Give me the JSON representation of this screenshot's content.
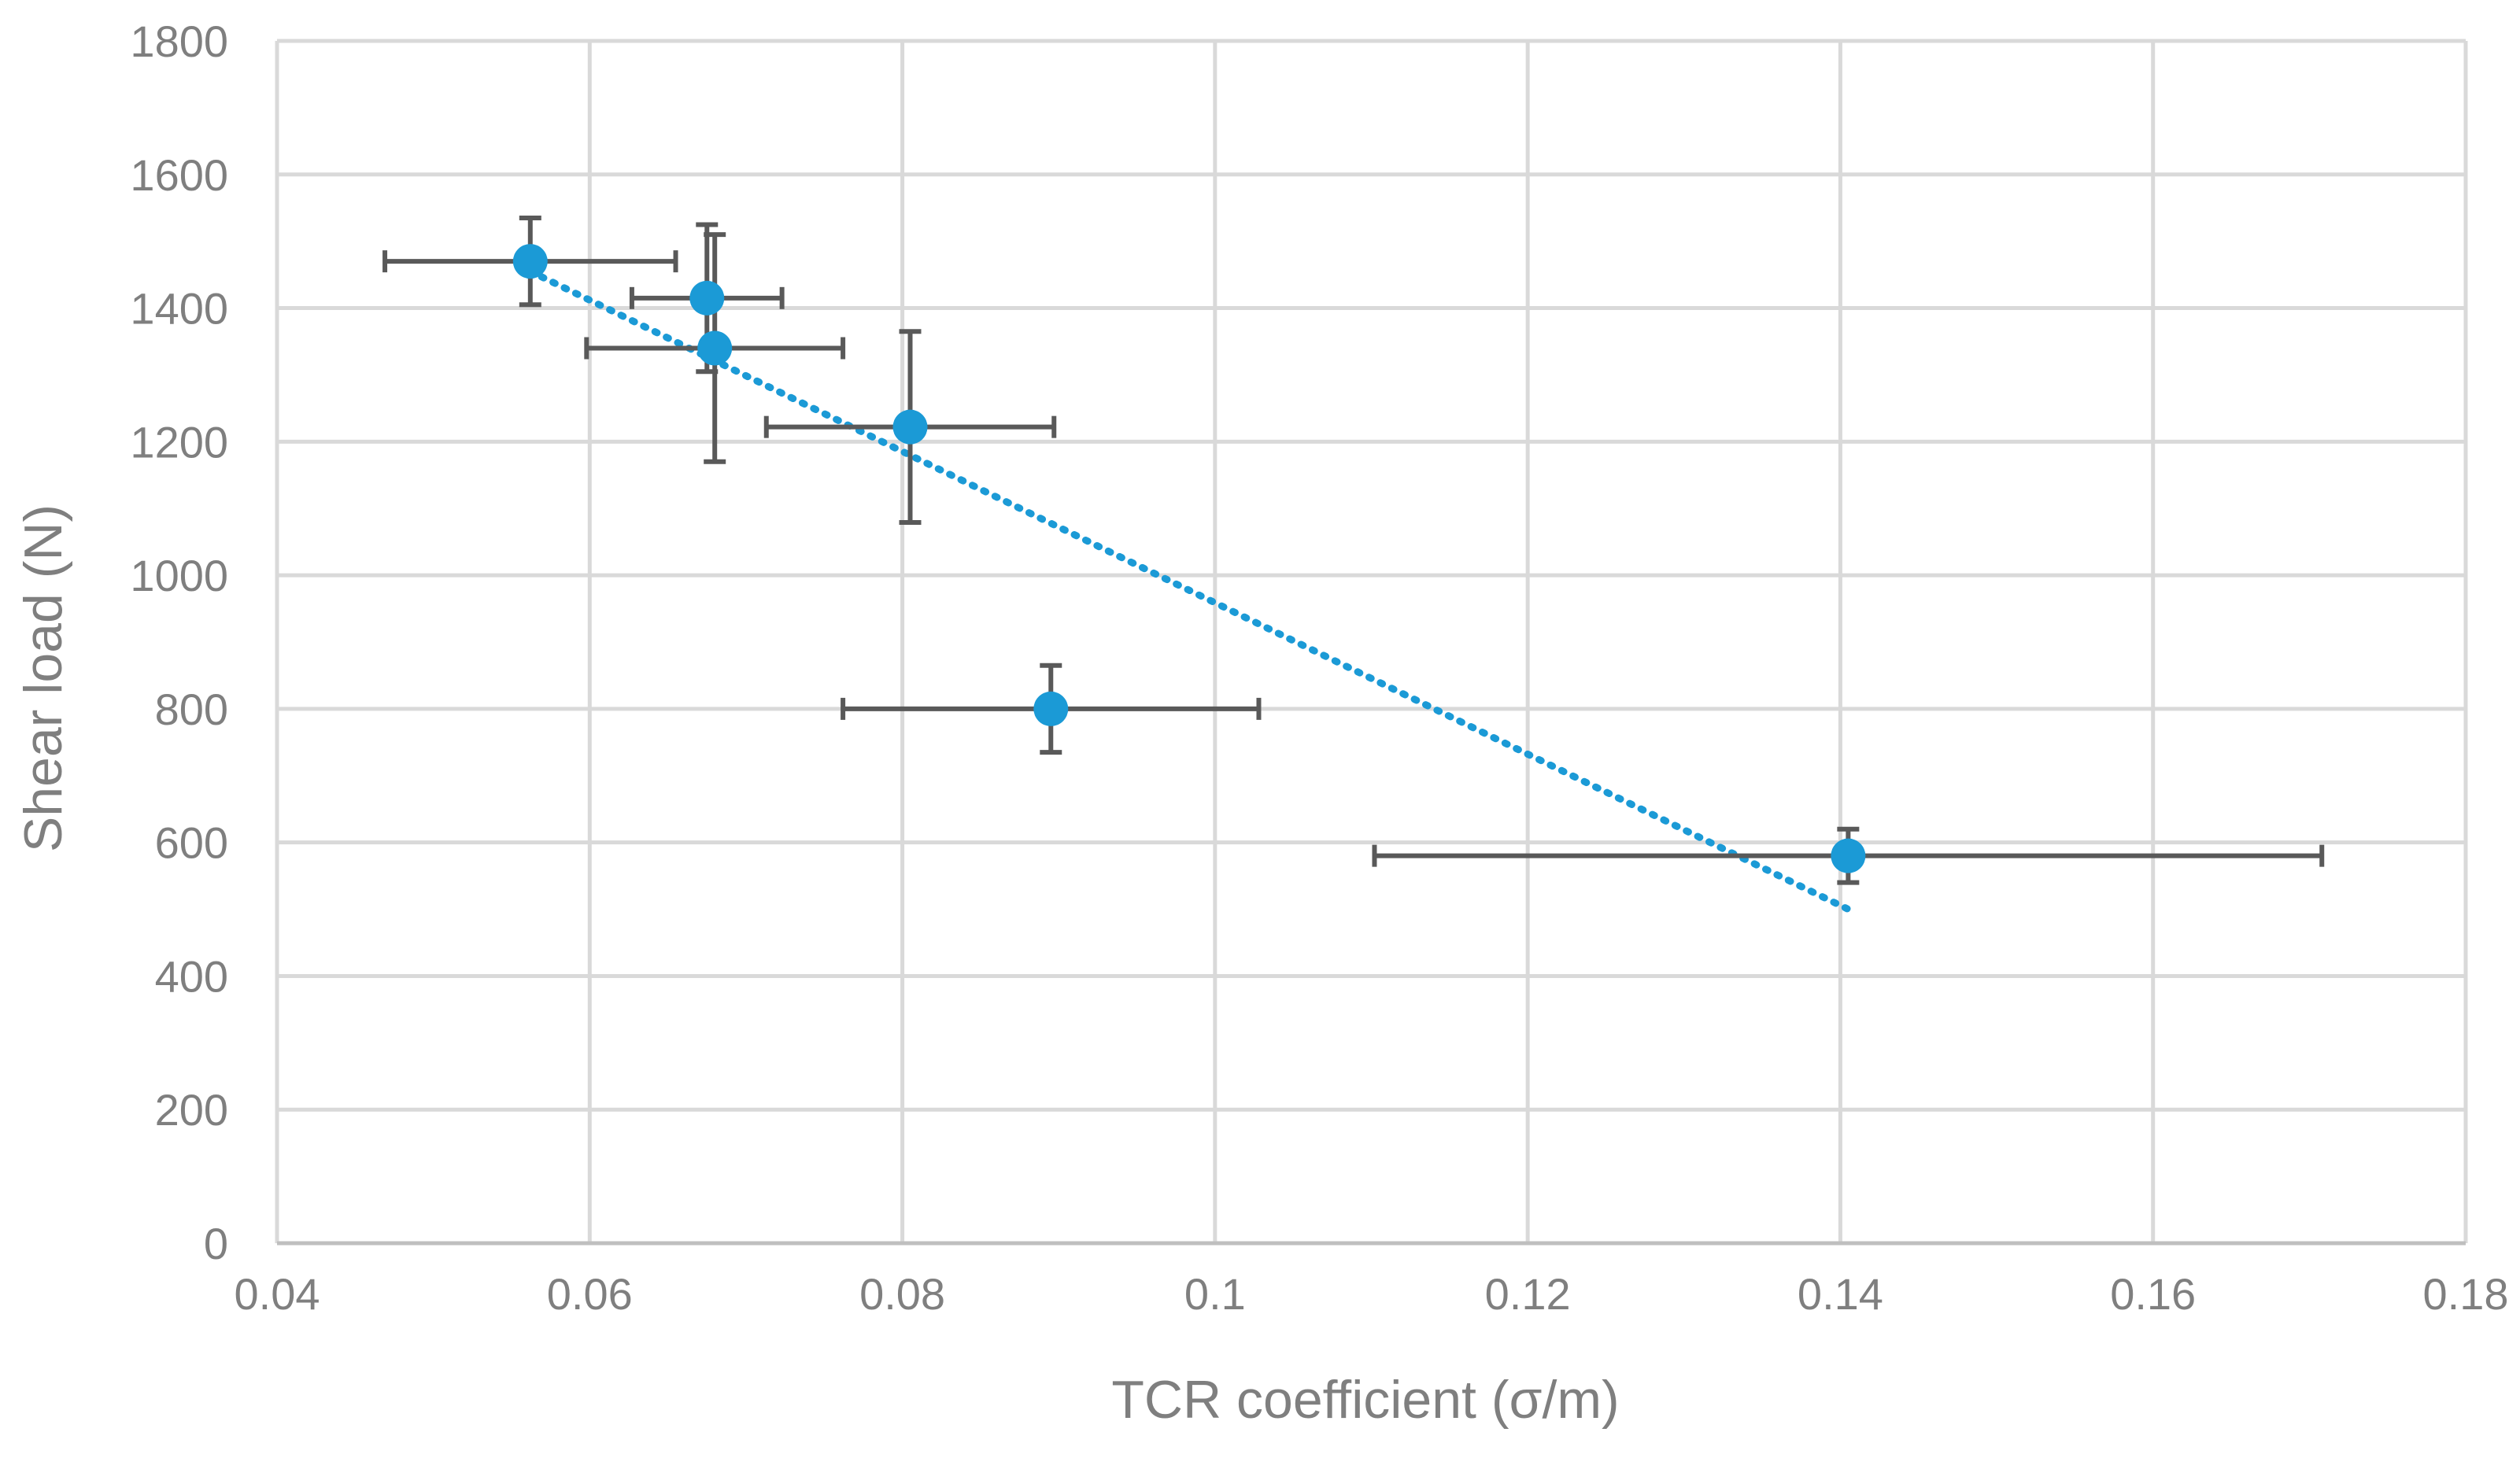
{
  "chart_data": {
    "type": "scatter",
    "title": "",
    "xlabel": "TCR coefficient (σ/m)",
    "ylabel": "Shear load (N)",
    "xlim": [
      0.04,
      0.18
    ],
    "ylim": [
      0,
      1800
    ],
    "x_ticks": [
      "0.04",
      "0.06",
      "0.08",
      "0.1",
      "0.12",
      "0.14",
      "0.16",
      "0.18"
    ],
    "y_ticks": [
      "0",
      "200",
      "400",
      "600",
      "800",
      "1000",
      "1200",
      "1400",
      "1600",
      "1800"
    ],
    "grid": true,
    "legend": "none",
    "series": [
      {
        "name": "Shear load",
        "color": "#1b9ad6",
        "points": [
          {
            "x": 0.0562,
            "y": 1470,
            "x_err": 0.0093,
            "y_err": 65
          },
          {
            "x": 0.0675,
            "y": 1415,
            "x_err": 0.0048,
            "y_err": 110
          },
          {
            "x": 0.068,
            "y": 1340,
            "x_err": 0.0082,
            "y_err": 170
          },
          {
            "x": 0.0805,
            "y": 1222,
            "x_err": 0.0092,
            "y_err": 143
          },
          {
            "x": 0.0895,
            "y": 800,
            "x_err": 0.0133,
            "y_err": 65
          },
          {
            "x": 0.1405,
            "y": 580,
            "x_err": 0.0303,
            "y_err": 40
          }
        ]
      }
    ],
    "trendline": {
      "style": "dotted",
      "color": "#1b9ad6",
      "from": {
        "x": 0.0562,
        "y": 1455
      },
      "to": {
        "x": 0.1405,
        "y": 500
      }
    },
    "error_bar_color": "#595959"
  }
}
